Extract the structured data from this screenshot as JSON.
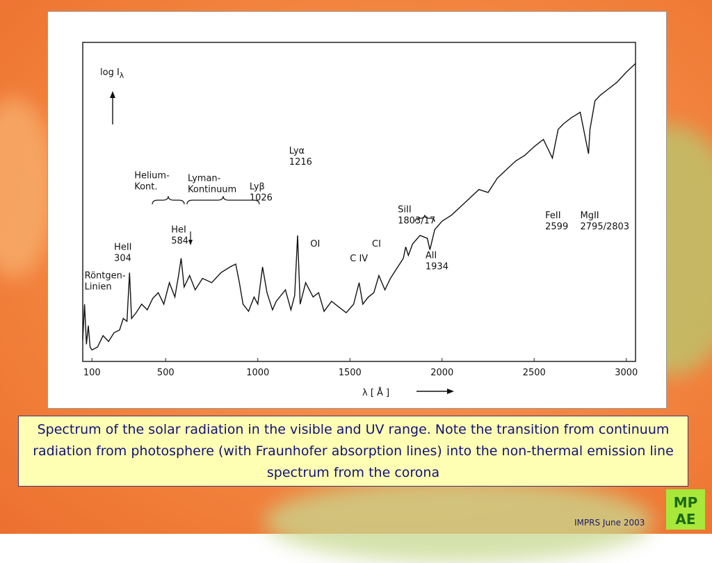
{
  "colors": {
    "caption_bg": "#ffffb4",
    "caption_text": "#10127a",
    "slide_bg": "#f48a45",
    "logo": "#a8e83a"
  },
  "caption": "Spectrum of the solar radiation in the visible and UV range. Note the transition from continuum radiation from photosphere (with Fraunhofer absorption lines) into the non-thermal emission line spectrum from the corona",
  "footer": "IMPRS June 2003",
  "logo_text": "MPAE",
  "chart_data": {
    "type": "line",
    "title": "",
    "ylabel": "log I",
    "ylabel_subscript": "λ",
    "xlabel": "λ [ Å ]",
    "xlim": [
      50,
      3050
    ],
    "x_ticks": [
      100,
      500,
      1000,
      1500,
      2000,
      2500,
      3000
    ],
    "series": [
      {
        "x": [
          50,
          60,
          70,
          80,
          90,
          100,
          130,
          160,
          190,
          220,
          250,
          270,
          290,
          304,
          315,
          340,
          370,
          400,
          430,
          460,
          490,
          520,
          550,
          570,
          584,
          600,
          630,
          660,
          700,
          750,
          800,
          850,
          880,
          900,
          920,
          950,
          980,
          1000,
          1026,
          1050,
          1080,
          1100,
          1150,
          1180,
          1200,
          1216,
          1230,
          1260,
          1300,
          1330,
          1360,
          1400,
          1440,
          1480,
          1520,
          1550,
          1570,
          1600,
          1630,
          1657,
          1690,
          1720,
          1760,
          1790,
          1803,
          1817,
          1840,
          1880,
          1920,
          1934,
          1960,
          2000,
          2050,
          2100,
          2150,
          2200,
          2250,
          2300,
          2350,
          2400,
          2450,
          2500,
          2550,
          2599,
          2630,
          2660,
          2700,
          2750,
          2795,
          2803,
          2830,
          2860,
          2900,
          2950,
          3000,
          3050
        ],
        "y": [
          0.15,
          0.4,
          0.12,
          0.25,
          0.1,
          0.08,
          0.1,
          0.18,
          0.14,
          0.2,
          0.22,
          0.3,
          0.28,
          0.62,
          0.3,
          0.34,
          0.4,
          0.36,
          0.44,
          0.48,
          0.4,
          0.55,
          0.45,
          0.6,
          0.72,
          0.52,
          0.6,
          0.5,
          0.58,
          0.55,
          0.62,
          0.66,
          0.68,
          0.55,
          0.4,
          0.35,
          0.45,
          0.4,
          0.66,
          0.48,
          0.36,
          0.42,
          0.5,
          0.36,
          0.46,
          0.88,
          0.4,
          0.55,
          0.45,
          0.48,
          0.35,
          0.42,
          0.38,
          0.34,
          0.4,
          0.55,
          0.4,
          0.45,
          0.48,
          0.6,
          0.5,
          0.58,
          0.66,
          0.72,
          0.8,
          0.74,
          0.82,
          0.88,
          0.86,
          0.78,
          0.92,
          0.98,
          1.02,
          1.08,
          1.14,
          1.2,
          1.18,
          1.28,
          1.34,
          1.4,
          1.44,
          1.5,
          1.55,
          1.42,
          1.62,
          1.66,
          1.7,
          1.74,
          1.45,
          1.62,
          1.82,
          1.86,
          1.9,
          1.95,
          2.02,
          2.08
        ]
      }
    ],
    "annotations": [
      {
        "lines": [
          "Röntgen-",
          "Linien"
        ],
        "x": 60,
        "y": 0.58
      },
      {
        "lines": [
          "HeII",
          "304"
        ],
        "x": 220,
        "y": 0.78
      },
      {
        "lines": [
          "Helium-",
          "Kont."
        ],
        "x": 330,
        "y": 1.28
      },
      {
        "lines": [
          "Lyman-",
          "Kontinuum"
        ],
        "x": 620,
        "y": 1.26
      },
      {
        "lines": [
          "HeI",
          "584"
        ],
        "x": 530,
        "y": 0.9
      },
      {
        "lines": [
          "Lyβ",
          "1026"
        ],
        "x": 955,
        "y": 1.2
      },
      {
        "lines": [
          "Lyα",
          "1216"
        ],
        "x": 1170,
        "y": 1.45
      },
      {
        "lines": [
          "OI"
        ],
        "x": 1285,
        "y": 0.8
      },
      {
        "lines": [
          "CI"
        ],
        "x": 1620,
        "y": 0.8
      },
      {
        "lines": [
          "C IV"
        ],
        "x": 1500,
        "y": 0.7
      },
      {
        "lines": [
          "SiII",
          "1803/17"
        ],
        "x": 1760,
        "y": 1.04
      },
      {
        "lines": [
          "AlI",
          "1934"
        ],
        "x": 1910,
        "y": 0.72
      },
      {
        "lines": [
          "FeII",
          "2599"
        ],
        "x": 2560,
        "y": 1.0
      },
      {
        "lines": [
          "MgII",
          "2795/2803"
        ],
        "x": 2750,
        "y": 1.0
      }
    ]
  }
}
